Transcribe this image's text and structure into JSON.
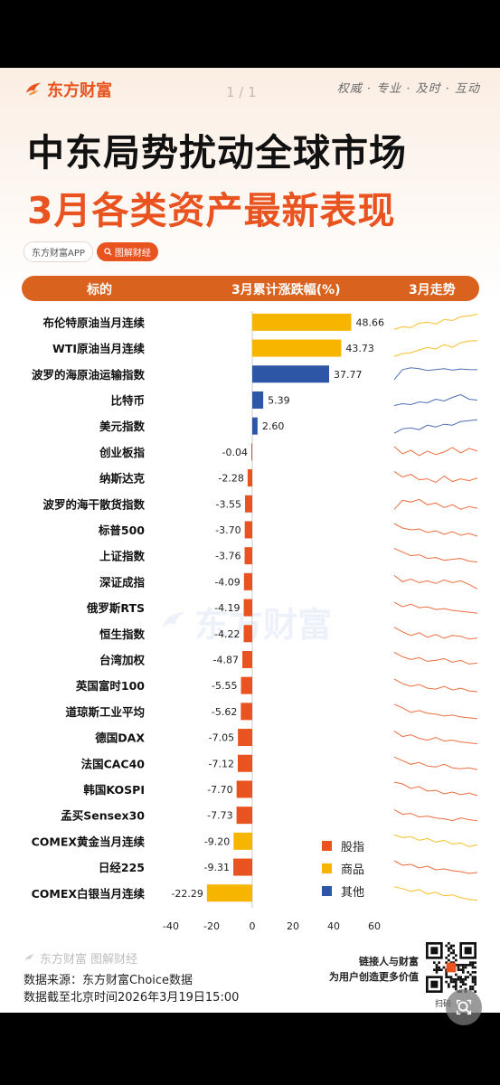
{
  "header": {
    "brand": "东方财富",
    "pager": "1 / 1",
    "slogan": "权威 · 专业 · 及时 · 互动"
  },
  "title": {
    "line1": "中东局势扰动全球市场",
    "line2": "3月各类资产最新表现"
  },
  "tags": {
    "app": "东方财富APP",
    "search": "图解财经"
  },
  "table_header": {
    "col1": "标的",
    "col2": "3月累计涨跌幅(%)",
    "col3": "3月走势"
  },
  "colors": {
    "stock": "#e9531f",
    "commodity": "#f7b500",
    "other": "#2e56a6",
    "header_bar": "#d9621e"
  },
  "chart_data": {
    "type": "bar",
    "orientation": "horizontal",
    "xlabel": "",
    "ylabel": "",
    "xlim": [
      -40,
      60
    ],
    "xticks": [
      -40,
      -20,
      0,
      20,
      40,
      60
    ],
    "categories": [
      "布伦特原油当月连续",
      "WTI原油当月连续",
      "波罗的海原油运输指数",
      "比特币",
      "美元指数",
      "创业板指",
      "纳斯达克",
      "波罗的海干散货指数",
      "标普500",
      "上证指数",
      "深证成指",
      "俄罗斯RTS",
      "恒生指数",
      "台湾加权",
      "英国富时100",
      "道琼斯工业平均",
      "德国DAX",
      "法国CAC40",
      "韩国KOSPI",
      "孟买Sensex30",
      "COMEX黄金当月连续",
      "日经225",
      "COMEX白银当月连续"
    ],
    "values": [
      48.66,
      43.73,
      37.77,
      5.39,
      2.6,
      -0.04,
      -2.28,
      -3.55,
      -3.7,
      -3.76,
      -4.09,
      -4.19,
      -4.22,
      -4.87,
      -5.55,
      -5.62,
      -7.05,
      -7.12,
      -7.7,
      -7.73,
      -9.2,
      -9.31,
      -22.29
    ],
    "value_labels": [
      "48.66",
      "43.73",
      "37.77",
      "5.39",
      "2.60",
      "-0.04",
      "-2.28",
      "-3.55",
      "-3.70",
      "-3.76",
      "-4.09",
      "-4.19",
      "-4.22",
      "-4.87",
      "-5.55",
      "-5.62",
      "-7.05",
      "-7.12",
      "-7.70",
      "-7.73",
      "-9.20",
      "-9.31",
      "-22.29"
    ],
    "groups": [
      "commodity",
      "commodity",
      "other",
      "other",
      "other",
      "stock",
      "stock",
      "stock",
      "stock",
      "stock",
      "stock",
      "stock",
      "stock",
      "stock",
      "stock",
      "stock",
      "stock",
      "stock",
      "stock",
      "stock",
      "commodity",
      "stock",
      "commodity"
    ],
    "legend": [
      {
        "key": "stock",
        "label": "股指"
      },
      {
        "key": "commodity",
        "label": "商品"
      },
      {
        "key": "other",
        "label": "其他"
      }
    ],
    "legend_position": "bottom-right",
    "sparklines": [
      [
        0.1,
        0.25,
        0.2,
        0.45,
        0.5,
        0.4,
        0.65,
        0.6,
        0.8,
        0.85,
        0.95
      ],
      [
        0.05,
        0.2,
        0.25,
        0.4,
        0.55,
        0.45,
        0.7,
        0.55,
        0.8,
        0.9,
        0.92
      ],
      [
        0.2,
        0.75,
        0.85,
        0.8,
        0.7,
        0.75,
        0.8,
        0.72,
        0.78,
        0.75,
        0.74
      ],
      [
        0.2,
        0.3,
        0.25,
        0.4,
        0.35,
        0.55,
        0.45,
        0.65,
        0.8,
        0.55,
        0.5
      ],
      [
        0.1,
        0.35,
        0.4,
        0.3,
        0.55,
        0.45,
        0.6,
        0.55,
        0.75,
        0.8,
        0.85
      ],
      [
        0.8,
        0.4,
        0.6,
        0.3,
        0.55,
        0.35,
        0.5,
        0.75,
        0.45,
        0.7,
        0.55
      ],
      [
        0.85,
        0.55,
        0.7,
        0.4,
        0.45,
        0.25,
        0.6,
        0.3,
        0.45,
        0.35,
        0.5
      ],
      [
        0.2,
        0.7,
        0.6,
        0.75,
        0.45,
        0.55,
        0.3,
        0.45,
        0.2,
        0.35,
        0.25
      ],
      [
        0.85,
        0.6,
        0.5,
        0.55,
        0.35,
        0.45,
        0.25,
        0.4,
        0.2,
        0.3,
        0.15
      ],
      [
        0.9,
        0.7,
        0.5,
        0.55,
        0.35,
        0.4,
        0.25,
        0.3,
        0.35,
        0.2,
        0.15
      ],
      [
        0.85,
        0.5,
        0.65,
        0.45,
        0.55,
        0.4,
        0.6,
        0.45,
        0.55,
        0.35,
        0.1
      ],
      [
        0.8,
        0.55,
        0.7,
        0.5,
        0.55,
        0.4,
        0.45,
        0.35,
        0.3,
        0.25,
        0.2
      ],
      [
        0.85,
        0.6,
        0.4,
        0.55,
        0.3,
        0.45,
        0.25,
        0.4,
        0.35,
        0.2,
        0.25
      ],
      [
        0.9,
        0.65,
        0.5,
        0.6,
        0.4,
        0.45,
        0.55,
        0.35,
        0.45,
        0.25,
        0.3
      ],
      [
        0.85,
        0.6,
        0.45,
        0.55,
        0.35,
        0.3,
        0.45,
        0.25,
        0.35,
        0.2,
        0.15
      ],
      [
        0.9,
        0.7,
        0.45,
        0.55,
        0.4,
        0.35,
        0.25,
        0.3,
        0.2,
        0.15,
        0.1
      ],
      [
        0.85,
        0.55,
        0.65,
        0.45,
        0.35,
        0.5,
        0.3,
        0.35,
        0.25,
        0.2,
        0.15
      ],
      [
        0.85,
        0.65,
        0.45,
        0.55,
        0.35,
        0.3,
        0.45,
        0.25,
        0.2,
        0.25,
        0.15
      ],
      [
        0.9,
        0.8,
        0.55,
        0.65,
        0.4,
        0.45,
        0.25,
        0.35,
        0.2,
        0.3,
        0.15
      ],
      [
        0.8,
        0.55,
        0.6,
        0.4,
        0.45,
        0.35,
        0.3,
        0.2,
        0.35,
        0.25,
        0.2
      ],
      [
        0.85,
        0.7,
        0.75,
        0.55,
        0.65,
        0.45,
        0.55,
        0.35,
        0.4,
        0.2,
        0.3
      ],
      [
        0.85,
        0.6,
        0.65,
        0.45,
        0.55,
        0.35,
        0.4,
        0.3,
        0.25,
        0.15,
        0.2
      ],
      [
        0.85,
        0.75,
        0.6,
        0.7,
        0.45,
        0.55,
        0.35,
        0.4,
        0.25,
        0.15,
        0.1
      ]
    ]
  },
  "watermark": "东方财富",
  "footer": {
    "brand": "东方财富 图解财经",
    "source": "数据来源：东方财富Choice数据",
    "date": "数据截至北京时间2026年3月19日15:00",
    "slogan_line1": "链接人与财富",
    "slogan_line2": "为用户创造更多价值",
    "qr_caption": "扫码"
  }
}
